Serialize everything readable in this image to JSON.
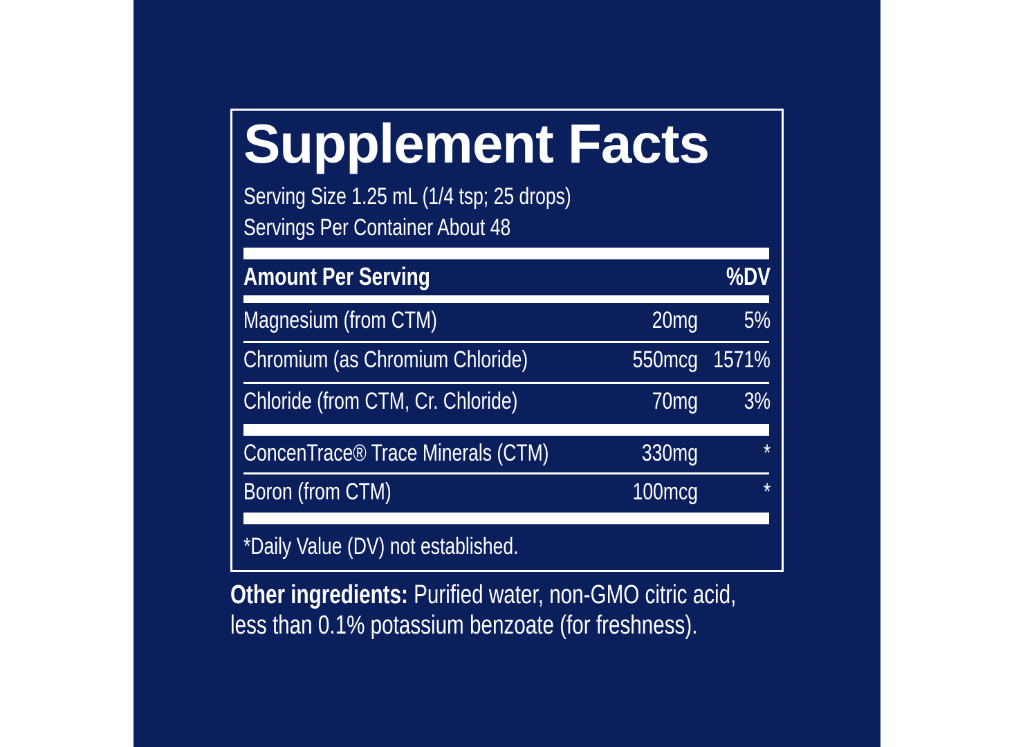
{
  "label": {
    "title": "Supplement Facts",
    "serving_size": "Serving Size 1.25 mL (1/4 tsp; 25 drops)",
    "servings_per_container": "Servings Per Container About 48",
    "header": {
      "amount": "Amount Per Serving",
      "dv": "%DV"
    },
    "rows": [
      {
        "name": "Magnesium (from CTM)",
        "amount": "20mg",
        "dv": "5%"
      },
      {
        "name": "Chromium (as Chromium Chloride)",
        "amount": "550mcg",
        "dv": "1571%"
      },
      {
        "name": "Chloride (from CTM, Cr. Chloride)",
        "amount": "70mg",
        "dv": "3%"
      },
      {
        "name": "ConcenTrace® Trace Minerals (CTM)",
        "amount": "330mg",
        "dv": "*"
      },
      {
        "name": "Boron (from CTM)",
        "amount": "100mcg",
        "dv": "*"
      }
    ],
    "footnote": "*Daily Value (DV) not established.",
    "other_ingredients": {
      "label": "Other ingredients:",
      "text": "Purified water, non-GMO citric acid, less than 0.1% potassium benzoate (for freshness)."
    }
  }
}
